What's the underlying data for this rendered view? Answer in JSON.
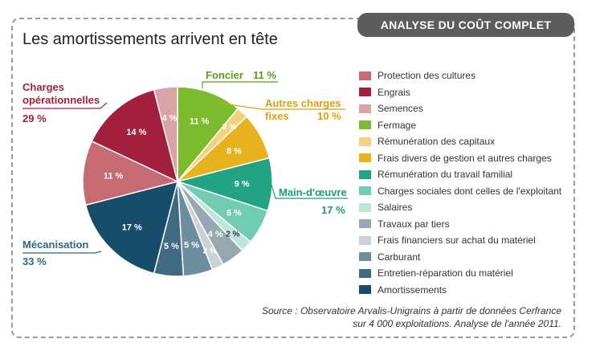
{
  "header": {
    "tag": "ANALYSE DU COÛT COMPLET",
    "title": "Les amortissements arrivent en tête"
  },
  "chart_data": {
    "type": "pie",
    "title": "Les amortissements arrivent en tête",
    "slices": [
      {
        "name": "Fermage",
        "value": 11,
        "label": "11 %",
        "color": "#7dbb2e",
        "label_color": "#ffffff"
      },
      {
        "name": "Rémunération des capitaux",
        "value": 2,
        "label": "2 %",
        "color": "#f2d27a",
        "label_color": "#ffffff"
      },
      {
        "name": "Frais divers de gestion et autres charges",
        "value": 8,
        "label": "8 %",
        "color": "#e8b21f",
        "label_color": "#ffffff"
      },
      {
        "name": "Rémunération du travail familial",
        "value": 9,
        "label": "9 %",
        "color": "#22a383",
        "label_color": "#ffffff"
      },
      {
        "name": "Charges sociales dont celles de l'exploitant",
        "value": 6,
        "label": "6 %",
        "color": "#72ccb3",
        "label_color": "#ffffff"
      },
      {
        "name": "Salaires",
        "value": 2,
        "label": "2 %",
        "color": "#bfe6da",
        "label_color": "#333333"
      },
      {
        "name": "Travaux par tiers",
        "value": 4,
        "label": "4 %",
        "color": "#97a8b0",
        "label_color": "#ffffff"
      },
      {
        "name": "Frais financiers sur achat du matériel",
        "value": 2,
        "label": "2 %",
        "color": "#c8d2d7",
        "label_color": "#ffffff"
      },
      {
        "name": "Carburant",
        "value": 5,
        "label": "5 %",
        "color": "#6d8e9e",
        "label_color": "#ffffff"
      },
      {
        "name": "Entretien-réparation du matériel",
        "value": 5,
        "label": "5 %",
        "color": "#3f6a80",
        "label_color": "#ffffff"
      },
      {
        "name": "Amortissements",
        "value": 17,
        "label": "17 %",
        "color": "#164d68",
        "label_color": "#ffffff"
      },
      {
        "name": "Protection des cultures",
        "value": 11,
        "label": "11 %",
        "color": "#c66b74",
        "label_color": "#ffffff"
      },
      {
        "name": "Engrais",
        "value": 14,
        "label": "14 %",
        "color": "#a2203e",
        "label_color": "#ffffff"
      },
      {
        "name": "Semences",
        "value": 4,
        "label": "4 %",
        "color": "#d9a3a8",
        "label_color": "#ffffff"
      }
    ],
    "groups": [
      {
        "name_lines": [
          "Foncier"
        ],
        "pct": "11 %",
        "color": "#5b9c1c"
      },
      {
        "name_lines": [
          "Autres charges",
          "fixes"
        ],
        "pct": "10 %",
        "color": "#d9a10f"
      },
      {
        "name_lines": [
          "Main-d'œuvre"
        ],
        "pct": "17 %",
        "color": "#1f9a7b"
      },
      {
        "name_lines": [
          "Mécanisation"
        ],
        "pct": "33 %",
        "color": "#2c6684"
      },
      {
        "name_lines": [
          "Charges",
          "opérationnelles"
        ],
        "pct": "29 %",
        "color": "#a2203e"
      }
    ],
    "legend": [
      {
        "name": "Protection des cultures",
        "color": "#c66b74"
      },
      {
        "name": "Engrais",
        "color": "#a2203e"
      },
      {
        "name": "Semences",
        "color": "#d9a3a8"
      },
      {
        "name": "Fermage",
        "color": "#7dbb2e"
      },
      {
        "name": "Rémunération des capitaux",
        "color": "#f2d27a"
      },
      {
        "name": "Frais divers de gestion et autres charges",
        "color": "#e8b21f"
      },
      {
        "name": "Rémunération du travail familial",
        "color": "#22a383"
      },
      {
        "name": "Charges sociales dont celles de l'exploitant",
        "color": "#72ccb3"
      },
      {
        "name": "Salaires",
        "color": "#bfe6da"
      },
      {
        "name": "Travaux par tiers",
        "color": "#97a8b0"
      },
      {
        "name": "Frais financiers sur achat du matériel",
        "color": "#c8d2d7"
      },
      {
        "name": "Carburant",
        "color": "#6d8e9e"
      },
      {
        "name": "Entretien-réparation du matériel",
        "color": "#3f6a80"
      },
      {
        "name": "Amortissements",
        "color": "#164d68"
      }
    ],
    "legend_position": "right"
  },
  "source": {
    "line1": "Source : Observatoire Arvalis-Unigrains à partir de données Cerfrance",
    "line2": "sur 4 000 exploitations.  Analyse de l'année 2011."
  }
}
